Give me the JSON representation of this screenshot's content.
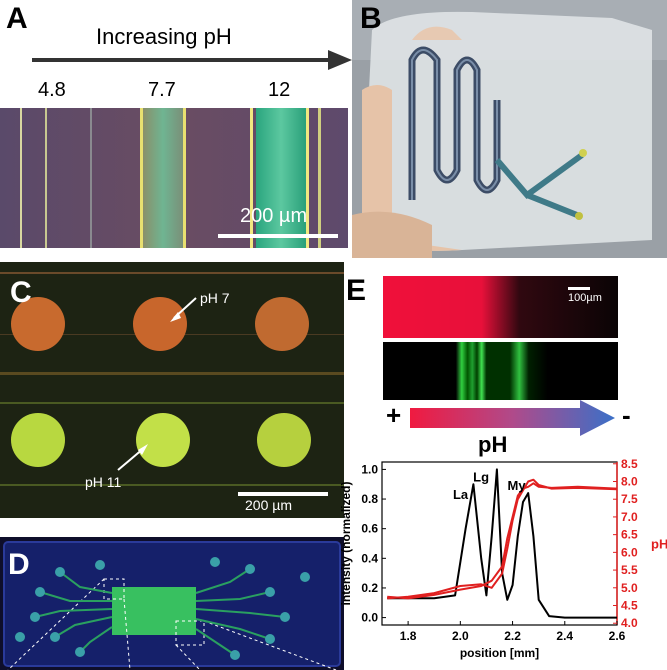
{
  "panels": {
    "a": {
      "letter": "A",
      "arrow_label": "Increasing pH",
      "ph_values": [
        "4.8",
        "7.7",
        "12"
      ],
      "scale_label": "200 µm"
    },
    "b": {
      "letter": "B"
    },
    "c": {
      "letter": "C",
      "label_top": "pH 7",
      "label_bottom": "pH 11",
      "scale_label": "200 µm"
    },
    "d": {
      "letter": "D"
    },
    "e": {
      "letter": "E",
      "scale_label": "100µm",
      "gradient_plus": "+",
      "gradient_minus": "-",
      "gradient_label": "pH"
    }
  },
  "chart_data": {
    "type": "line",
    "xlabel": "position [mm]",
    "ylabel": "intensity (normalized)",
    "y2label": "pH",
    "xlim": [
      1.7,
      2.6
    ],
    "ylim": [
      -0.05,
      1.05
    ],
    "y2lim": [
      3.95,
      8.55
    ],
    "xticks": [
      "1.8",
      "2.0",
      "2.2",
      "2.4",
      "2.6"
    ],
    "yticks": [
      "0.0",
      "0.2",
      "0.4",
      "0.6",
      "0.8",
      "1.0"
    ],
    "y2ticks": [
      "4.0",
      "4.5",
      "5.0",
      "5.5",
      "6.0",
      "6.5",
      "7.0",
      "7.5",
      "8.0",
      "8.5"
    ],
    "peak_labels": [
      {
        "text": "La",
        "x": 2.03,
        "y": 0.8
      },
      {
        "text": "Lg",
        "x": 2.11,
        "y": 0.92
      },
      {
        "text": "My",
        "x": 2.25,
        "y": 0.86
      }
    ],
    "series": [
      {
        "axis": "left",
        "color": "#000000",
        "x": [
          1.72,
          1.9,
          1.98,
          2.02,
          2.05,
          2.08,
          2.1,
          2.12,
          2.14,
          2.16,
          2.18,
          2.2,
          2.22,
          2.24,
          2.26,
          2.28,
          2.3,
          2.34,
          2.4,
          2.6
        ],
        "values": [
          0.13,
          0.13,
          0.15,
          0.6,
          0.9,
          0.4,
          0.15,
          0.55,
          1.0,
          0.3,
          0.12,
          0.22,
          0.55,
          0.78,
          0.84,
          0.55,
          0.12,
          0.01,
          0.0,
          0.0
        ]
      },
      {
        "axis": "right",
        "color": "#e02020",
        "x": [
          1.72,
          1.8,
          1.9,
          2.0,
          2.08,
          2.12,
          2.16,
          2.18,
          2.2,
          2.22,
          2.24,
          2.26,
          2.28,
          2.3,
          2.35,
          2.45,
          2.6
        ],
        "values": [
          4.75,
          4.7,
          4.8,
          4.95,
          5.05,
          5.2,
          5.6,
          6.4,
          7.0,
          7.6,
          7.8,
          7.85,
          7.95,
          7.85,
          7.82,
          7.85,
          7.8
        ]
      },
      {
        "axis": "right",
        "color": "#e02020",
        "x": [
          1.72,
          1.8,
          1.9,
          2.0,
          2.08,
          2.12,
          2.16,
          2.18,
          2.2,
          2.22,
          2.24,
          2.26,
          2.28,
          2.3,
          2.35,
          2.45,
          2.6
        ],
        "values": [
          4.7,
          4.75,
          4.85,
          5.05,
          5.1,
          5.0,
          5.4,
          6.1,
          6.9,
          7.5,
          7.75,
          8.0,
          8.05,
          7.9,
          7.8,
          7.82,
          7.78
        ]
      }
    ]
  }
}
